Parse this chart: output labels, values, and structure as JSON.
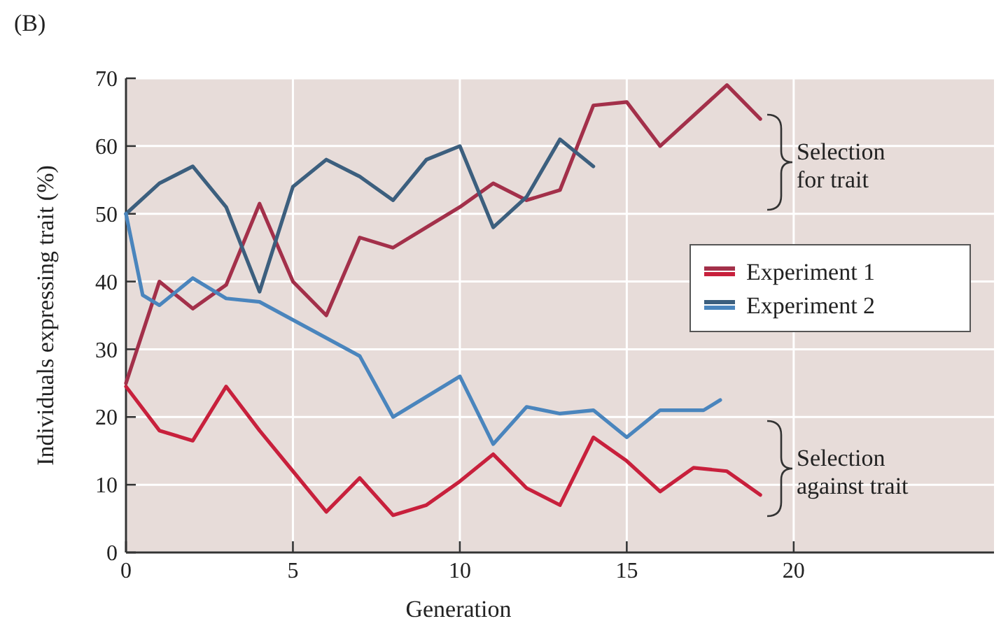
{
  "chart_data": {
    "type": "line",
    "xlabel": "Generation",
    "ylabel": "Individuals expressing trait (%)",
    "xlim": [
      0,
      26
    ],
    "xticks": [
      0,
      5,
      10,
      15,
      20
    ],
    "ylim": [
      0,
      70
    ],
    "yticks": [
      0,
      10,
      20,
      30,
      40,
      50,
      60,
      70
    ],
    "grid": true,
    "legend": "right",
    "line_style": "solid",
    "annotations": [
      "(B)",
      "Selection for trait",
      "Selection against trait"
    ],
    "series": [
      {
        "name": "Experiment 1",
        "color": "#a3304a",
        "x": [
          0,
          1,
          2,
          3,
          4,
          5,
          6,
          7,
          8,
          9,
          10,
          11,
          12,
          13,
          14,
          15,
          16,
          17,
          18,
          19
        ],
        "values": [
          25,
          40,
          36,
          39.5,
          51.5,
          40,
          35,
          46.5,
          45,
          48,
          51,
          54.5,
          52,
          53.5,
          66,
          66.5,
          60,
          64.5,
          69,
          64
        ]
      },
      {
        "color": "#c8203c",
        "x": [
          0,
          1,
          2,
          3,
          4,
          5,
          6,
          7,
          8,
          9,
          10,
          11,
          12,
          13,
          14,
          15,
          16,
          17,
          18,
          19
        ],
        "values": [
          24.5,
          18,
          16.5,
          24.5,
          18,
          12,
          6,
          11,
          5.5,
          7,
          10.5,
          14.5,
          9.5,
          7,
          17,
          13.5,
          9,
          12.5,
          12,
          8.5
        ]
      },
      {
        "name": "Experiment 2",
        "color": "#3c5f7e",
        "x": [
          0,
          1,
          2,
          3,
          4,
          5,
          6,
          7,
          8,
          9,
          10,
          11,
          12,
          13,
          14
        ],
        "values": [
          50,
          54.5,
          57,
          51,
          38.5,
          54,
          58,
          55.5,
          52,
          58,
          60,
          48,
          52.5,
          61,
          57
        ]
      },
      {
        "color": "#4a85bd",
        "x": [
          0,
          0.5,
          1,
          2,
          3,
          4,
          7,
          8,
          10,
          11,
          12,
          13,
          14,
          15,
          16,
          17.3,
          17.8
        ],
        "values": [
          50,
          38,
          36.5,
          40.5,
          37.5,
          37,
          29,
          20,
          26,
          16,
          21.5,
          20.5,
          21,
          17,
          21,
          21,
          22.5
        ]
      }
    ]
  }
}
